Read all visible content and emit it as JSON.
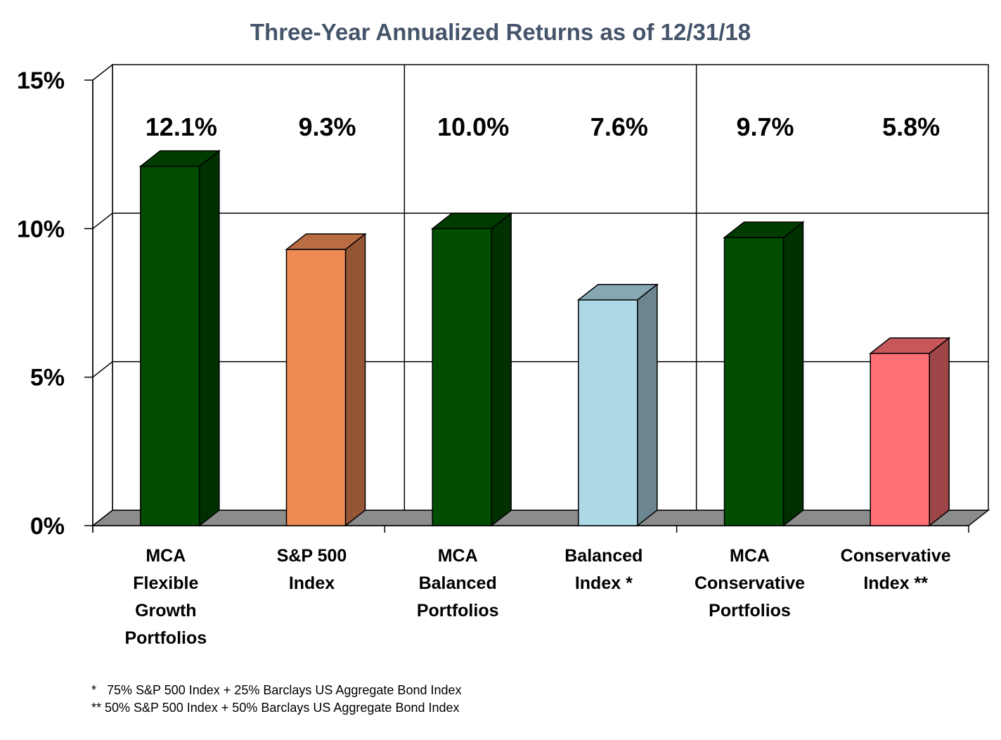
{
  "chart_data": {
    "type": "bar",
    "title": "Three-Year Annualized Returns as of 12/31/18",
    "categories": [
      [
        "MCA",
        "Flexible",
        "Growth",
        "Portfolios"
      ],
      [
        "S&P 500",
        "Index"
      ],
      [
        "MCA",
        "Balanced",
        "Portfolios"
      ],
      [
        "Balanced",
        "Index *"
      ],
      [
        "MCA",
        "Conservative",
        "Portfolios"
      ],
      [
        "Conservative",
        "Index **"
      ]
    ],
    "values": [
      12.1,
      9.3,
      10.0,
      7.6,
      9.7,
      5.8
    ],
    "value_labels": [
      "12.1%",
      "9.3%",
      "10.0%",
      "7.6%",
      "9.7%",
      "5.8%"
    ],
    "bar_colors": [
      "#004d00",
      "#ee8a54",
      "#004d00",
      "#add8e6",
      "#004d00",
      "#ff6f74"
    ],
    "ylim": [
      0,
      15
    ],
    "yticks": [
      0,
      5,
      10,
      15
    ],
    "ytick_labels": [
      "0%",
      "5%",
      "10%",
      "15%"
    ],
    "grid": true,
    "style": "3d-column"
  },
  "footnotes": [
    "*   75% S&P 500 Index + 25% Barclays US Aggregate Bond Index",
    "** 50% S&P 500 Index + 50% Barclays US Aggregate Bond Index"
  ]
}
